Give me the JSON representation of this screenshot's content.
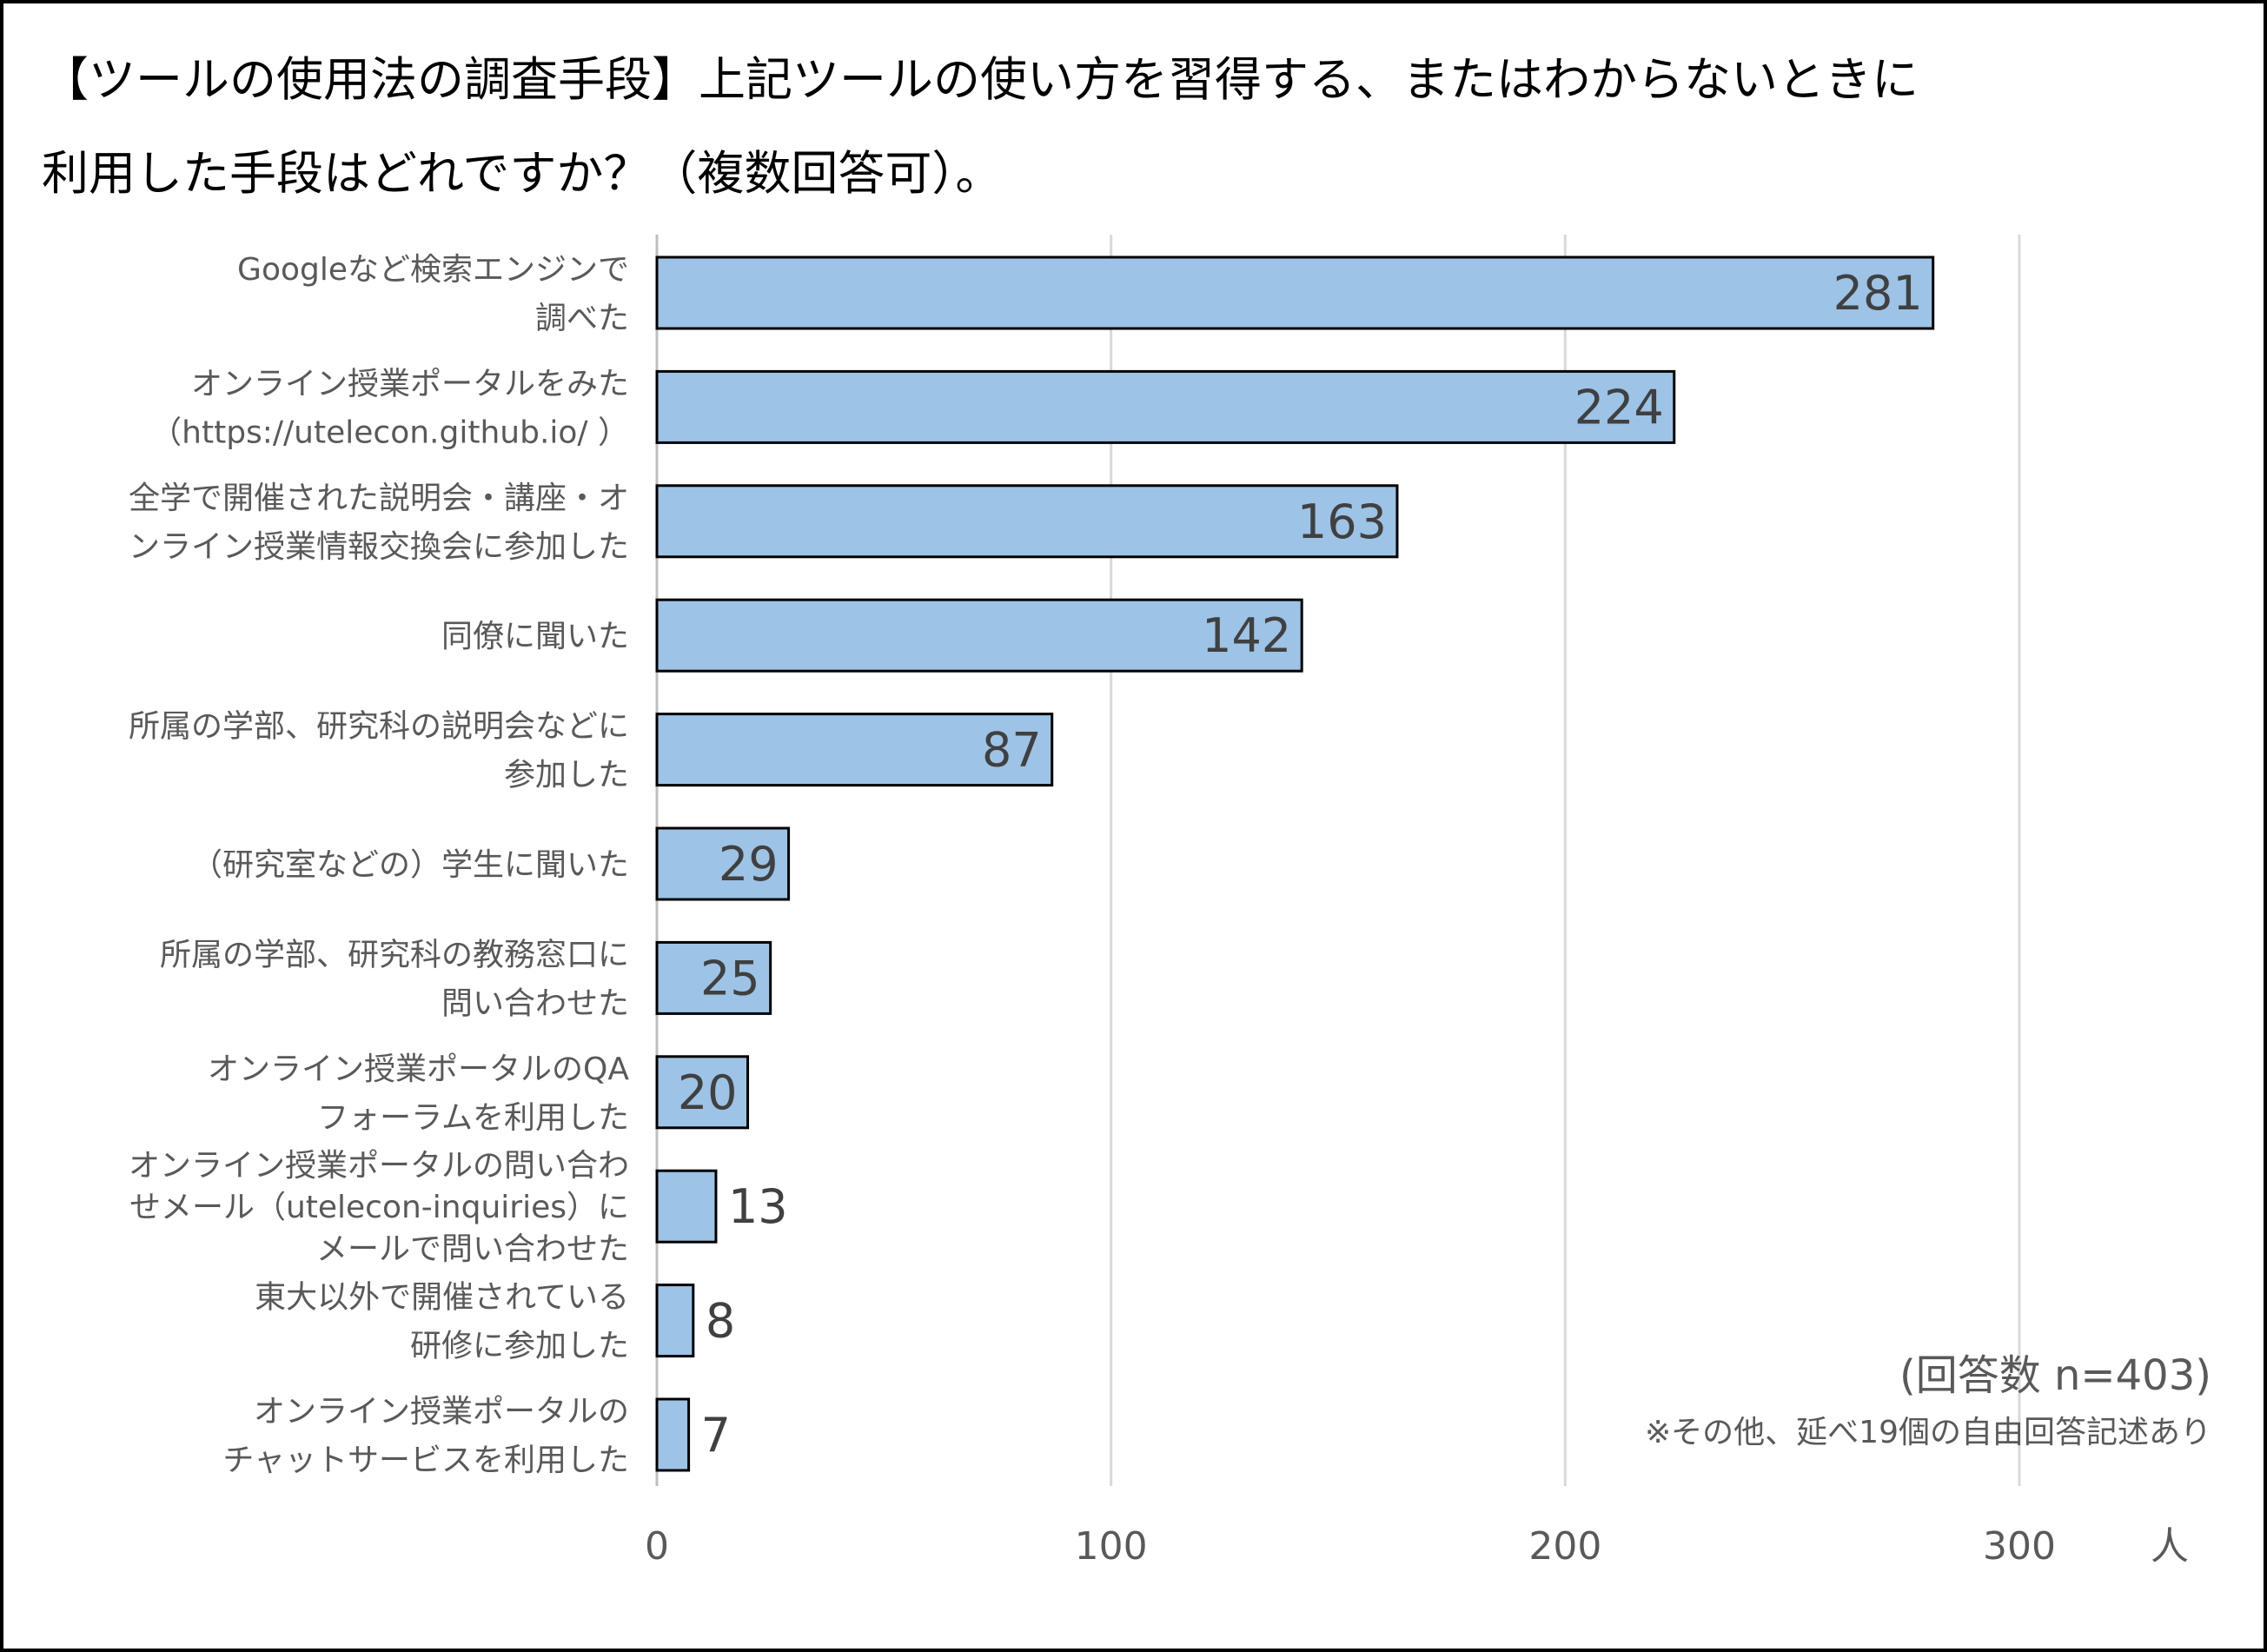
{
  "chart_data": {
    "type": "bar",
    "orientation": "horizontal",
    "title": [
      "【ツールの使用法の調査手段】上記ツールの使い方を習得する、またはわからないときに",
      "利用した手段はどれですか？（複数回答可）。"
    ],
    "categories": [
      [
        "Googleなど検索エンジンで",
        "調べた"
      ],
      [
        "オンライン授業ポータルをみた",
        "（https://utelecon.github.io/ ）"
      ],
      [
        "全学で開催された説明会・講座・オ",
        "ンライン授業情報交換会に参加した"
      ],
      [
        "同僚に聞いた"
      ],
      [
        "所属の学部、研究科の説明会などに",
        "参加した"
      ],
      [
        "（研究室などの）学生に聞いた"
      ],
      [
        "所属の学部、研究科の教務窓口に",
        "問い合わせた"
      ],
      [
        "オンライン授業ポータルのQA",
        "フォーラムを利用した"
      ],
      [
        "オンライン授業ポータルの問い合わ",
        "せメール（utelecon-inquiries）に",
        "メールで問い合わせた"
      ],
      [
        "東大以外で開催されている",
        "研修に参加した"
      ],
      [
        "オンライン授業ポータルの",
        "チャットサービスを利用した"
      ]
    ],
    "values": [
      281,
      224,
      163,
      142,
      87,
      29,
      25,
      20,
      13,
      8,
      7
    ],
    "xlim": [
      0,
      300
    ],
    "xticks": [
      "0",
      "100",
      "200",
      "300"
    ],
    "xlabel": "人",
    "grid": true,
    "bar_color": "#9DC3E6",
    "bar_edge_color": "#000000",
    "annotations": [
      "(回答数 n=403)",
      "※その他、延べ19個の自由回答記述あり"
    ]
  }
}
